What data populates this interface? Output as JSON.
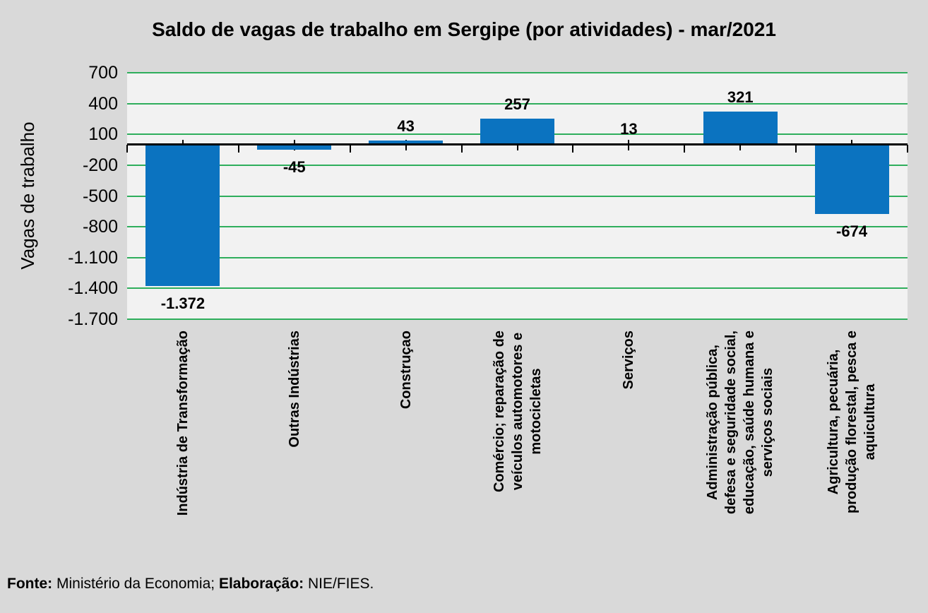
{
  "chart_data": {
    "type": "bar",
    "title": "Saldo de vagas de trabalho em Sergipe (por atividades) - mar/2021",
    "ylabel": "Vagas de trabalho",
    "xlabel": "",
    "ylim": [
      -1700,
      700
    ],
    "yticks": [
      700,
      400,
      100,
      -200,
      -500,
      -800,
      -1100,
      -1400,
      -1700
    ],
    "ytick_labels": [
      "700",
      "400",
      "100",
      "-200",
      "-500",
      "-800",
      "-1.100",
      "-1.400",
      "-1.700"
    ],
    "grid": true,
    "legend": false,
    "categories": [
      [
        "Indústria de Transformação"
      ],
      [
        "Outras Indústrias"
      ],
      [
        "Construçao"
      ],
      [
        "Comércio; reparação de",
        "veículos automotores e",
        "motocicletas"
      ],
      [
        "Serviços"
      ],
      [
        "Administração pública,",
        "defesa e seguridade social,",
        "educação, saúde humana e",
        "serviços sociais"
      ],
      [
        "Agricultura, pecuária,",
        "produção florestal, pesca e",
        "aquicultura"
      ]
    ],
    "values": [
      -1372,
      -45,
      43,
      257,
      13,
      321,
      -674
    ],
    "value_labels": [
      "-1.372",
      "-45",
      "43",
      "257",
      "13",
      "321",
      "-674"
    ],
    "colors": {
      "bar": "#0b73c0",
      "gridline": "#2fae5c",
      "plot_bg": "#f2f2f2",
      "page_bg": "#d9d9d9",
      "axis": "#000000",
      "text": "#000000"
    }
  },
  "footer": {
    "fonte_label": "Fonte:",
    "fonte_text": " Ministério da Economia; ",
    "elaboracao_label": "Elaboração:",
    "elaboracao_text": " NIE/FIES."
  }
}
